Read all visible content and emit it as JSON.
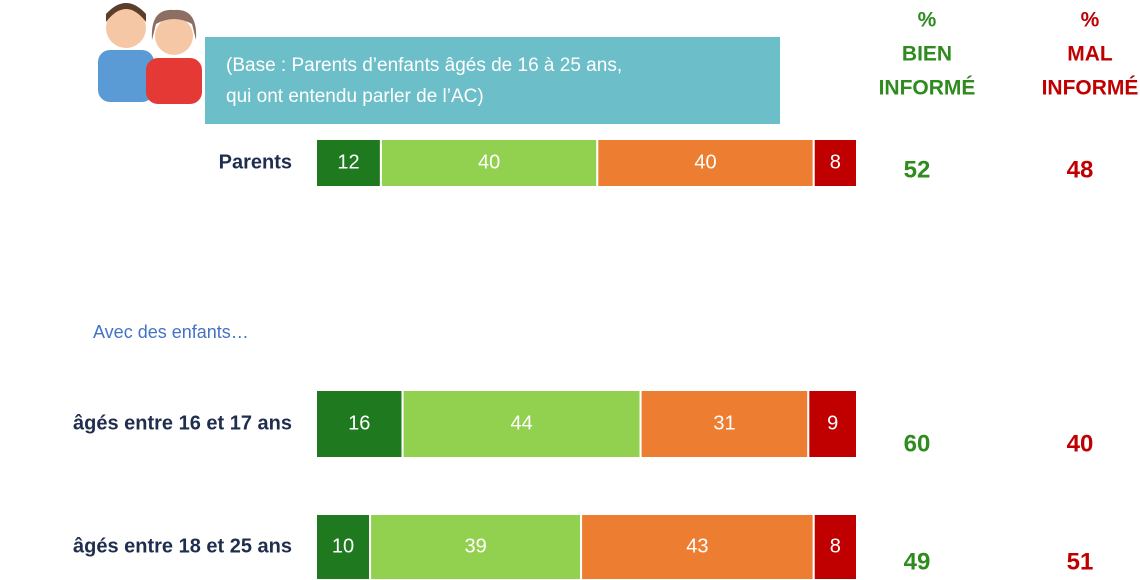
{
  "chart_data": {
    "type": "bar",
    "orientation": "horizontal",
    "stacked": true,
    "categories": [
      "Parents",
      "âgés entre 16 et 17 ans",
      "âgés entre 18 et 25 ans"
    ],
    "series": [
      {
        "color": "#1f7a1f",
        "values": [
          12,
          16,
          10
        ]
      },
      {
        "color": "#92d050",
        "values": [
          40,
          44,
          39
        ]
      },
      {
        "color": "#ed7d31",
        "values": [
          40,
          31,
          43
        ]
      },
      {
        "color": "#c00000",
        "values": [
          8,
          9,
          8
        ]
      }
    ],
    "base_note": [
      "(Base : Parents d’enfants âgés de 16 à 25 ans,",
      "qui ont entendu parler de l’AC)"
    ],
    "group_label": "Avec des enfants…",
    "summary_columns": [
      {
        "header": [
          "%",
          "BIEN",
          "INFORMÉ"
        ],
        "color": "#2e8b1e",
        "values": [
          52,
          60,
          49
        ]
      },
      {
        "header": [
          "%",
          "MAL",
          "INFORMÉ"
        ],
        "color": "#c00000",
        "values": [
          48,
          40,
          51
        ]
      }
    ]
  }
}
